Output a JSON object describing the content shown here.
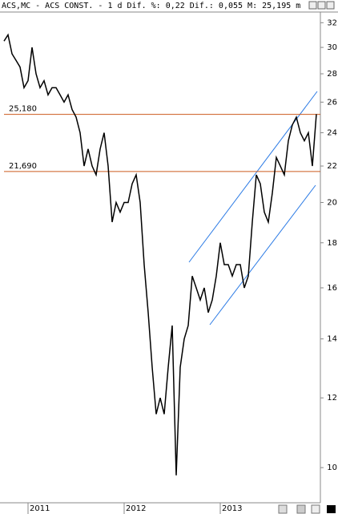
{
  "chart_data": {
    "type": "line",
    "title": "ACS,MC - ACS CONST. - 1 d Dif. %: 0,22 Dif.: 0,055 M: 25,195 m",
    "log_scale": true,
    "ylim": [
      9.16,
      32.7
    ],
    "yticks": [
      10,
      12,
      14,
      16,
      18,
      20,
      22,
      24,
      26,
      28,
      30,
      32
    ],
    "categories": [
      null,
      null,
      null,
      null,
      null,
      null,
      "2011",
      null,
      null,
      null,
      null,
      null,
      null,
      null,
      null,
      null,
      null,
      null,
      null,
      null,
      null,
      null,
      null,
      null,
      null,
      null,
      null,
      null,
      null,
      null,
      "2012",
      null,
      null,
      null,
      null,
      null,
      null,
      null,
      null,
      null,
      null,
      null,
      null,
      null,
      null,
      null,
      null,
      null,
      null,
      null,
      null,
      null,
      null,
      null,
      "2013",
      null,
      null,
      null,
      null,
      null,
      null,
      null,
      null,
      null,
      null,
      null,
      null,
      null,
      null,
      null,
      null,
      null,
      null,
      null,
      null,
      null,
      null,
      null,
      null
    ],
    "series": [
      {
        "color": "#000000",
        "values": [
          30.5,
          31,
          29.5,
          29,
          28.5,
          27,
          27.5,
          30,
          28,
          27,
          27.5,
          26.5,
          27,
          27,
          26.5,
          26,
          26.5,
          25.5,
          25,
          24,
          22,
          23,
          22,
          21.5,
          23,
          24,
          22,
          19,
          20,
          19.5,
          20,
          20,
          21,
          21.5,
          20,
          17,
          15,
          13,
          11.5,
          12,
          11.5,
          13,
          14.5,
          9.8,
          13,
          14,
          14.5,
          16.5,
          16,
          15.5,
          16,
          15,
          15.5,
          16.5,
          18,
          17,
          17,
          16.5,
          17,
          17,
          16,
          16.5,
          19,
          21.5,
          21,
          19.5,
          19,
          20.5,
          22.5,
          22,
          21.5,
          23.5,
          24.5,
          25,
          24,
          23.5,
          24,
          22,
          25.2
        ]
      }
    ],
    "hlines": [
      {
        "value": 25.18,
        "label": "25,180",
        "color": "#cc5a1e"
      },
      {
        "value": 21.69,
        "label": "21,690",
        "color": "#cc5a1e"
      }
    ]
  }
}
